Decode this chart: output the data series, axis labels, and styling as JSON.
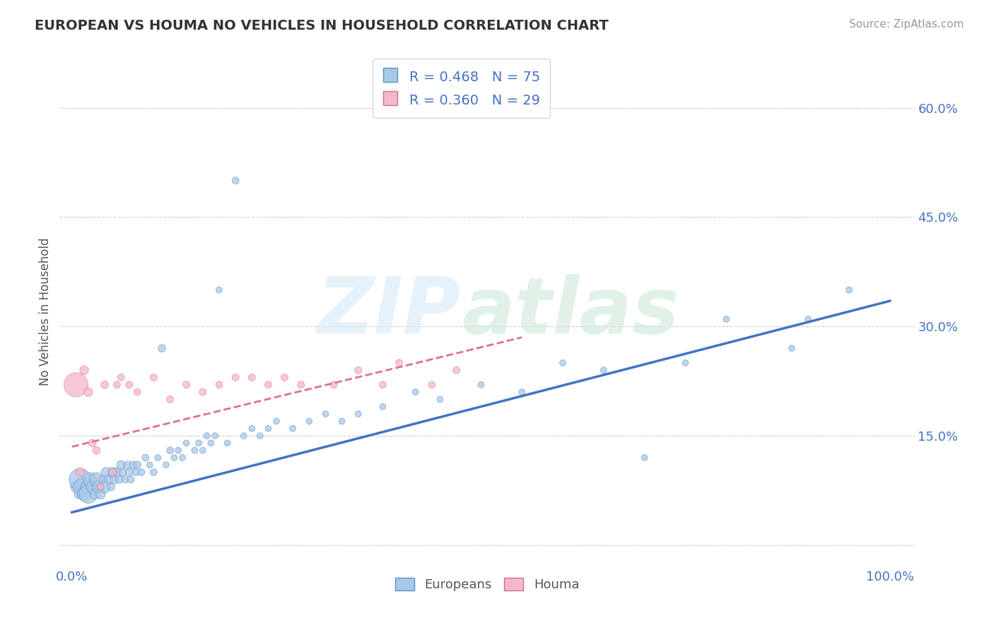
{
  "title": "EUROPEAN VS HOUMA NO VEHICLES IN HOUSEHOLD CORRELATION CHART",
  "source": "Source: ZipAtlas.com",
  "ylabel": "No Vehicles in Household",
  "yticks": [
    0.0,
    0.15,
    0.3,
    0.45,
    0.6
  ],
  "ytick_labels": [
    "",
    "15.0%",
    "30.0%",
    "45.0%",
    "60.0%"
  ],
  "xtick_vals": [
    0.0,
    1.0
  ],
  "xtick_labels": [
    "0.0%",
    "100.0%"
  ],
  "xlim": [
    -0.015,
    1.03
  ],
  "ylim": [
    -0.03,
    0.67
  ],
  "europeans_R": 0.468,
  "europeans_N": 75,
  "houma_R": 0.36,
  "houma_N": 29,
  "blue_color": "#a8c8e8",
  "pink_color": "#f4b8c8",
  "blue_line_color": "#4472c4",
  "pink_line_color": "#e07090",
  "legend_label_europeans": "Europeans",
  "legend_label_houma": "Houma",
  "europeans_x": [
    0.005,
    0.008,
    0.01,
    0.012,
    0.015,
    0.018,
    0.02,
    0.022,
    0.025,
    0.028,
    0.03,
    0.032,
    0.035,
    0.038,
    0.04,
    0.042,
    0.045,
    0.048,
    0.05,
    0.052,
    0.055,
    0.058,
    0.06,
    0.062,
    0.065,
    0.068,
    0.07,
    0.072,
    0.075,
    0.078,
    0.08,
    0.085,
    0.09,
    0.095,
    0.1,
    0.105,
    0.11,
    0.115,
    0.12,
    0.125,
    0.13,
    0.135,
    0.14,
    0.15,
    0.155,
    0.16,
    0.165,
    0.17,
    0.175,
    0.18,
    0.19,
    0.2,
    0.21,
    0.22,
    0.23,
    0.24,
    0.25,
    0.27,
    0.29,
    0.31,
    0.33,
    0.35,
    0.38,
    0.42,
    0.45,
    0.5,
    0.55,
    0.6,
    0.65,
    0.7,
    0.75,
    0.8,
    0.88,
    0.9,
    0.95
  ],
  "europeans_y": [
    0.08,
    0.07,
    0.09,
    0.08,
    0.07,
    0.08,
    0.07,
    0.09,
    0.08,
    0.07,
    0.09,
    0.08,
    0.07,
    0.09,
    0.08,
    0.1,
    0.09,
    0.08,
    0.1,
    0.09,
    0.1,
    0.09,
    0.11,
    0.1,
    0.09,
    0.11,
    0.1,
    0.09,
    0.11,
    0.1,
    0.11,
    0.1,
    0.12,
    0.11,
    0.1,
    0.12,
    0.27,
    0.11,
    0.13,
    0.12,
    0.13,
    0.12,
    0.14,
    0.13,
    0.14,
    0.13,
    0.15,
    0.14,
    0.15,
    0.35,
    0.14,
    0.5,
    0.15,
    0.16,
    0.15,
    0.16,
    0.17,
    0.16,
    0.17,
    0.18,
    0.17,
    0.18,
    0.19,
    0.21,
    0.2,
    0.22,
    0.21,
    0.25,
    0.24,
    0.12,
    0.25,
    0.31,
    0.27,
    0.31,
    0.35
  ],
  "europeans_size": [
    120,
    80,
    500,
    300,
    200,
    150,
    350,
    200,
    150,
    100,
    200,
    150,
    100,
    80,
    150,
    100,
    80,
    60,
    100,
    80,
    80,
    60,
    80,
    60,
    50,
    60,
    60,
    50,
    60,
    50,
    60,
    50,
    50,
    40,
    50,
    40,
    60,
    40,
    50,
    40,
    40,
    40,
    40,
    40,
    40,
    40,
    40,
    40,
    40,
    40,
    40,
    50,
    40,
    40,
    40,
    40,
    40,
    40,
    40,
    40,
    40,
    40,
    40,
    40,
    40,
    40,
    40,
    40,
    40,
    40,
    40,
    40,
    40,
    40,
    40
  ],
  "houma_x": [
    0.005,
    0.01,
    0.015,
    0.02,
    0.025,
    0.03,
    0.035,
    0.04,
    0.05,
    0.055,
    0.06,
    0.07,
    0.08,
    0.1,
    0.12,
    0.14,
    0.16,
    0.18,
    0.2,
    0.22,
    0.24,
    0.26,
    0.28,
    0.32,
    0.35,
    0.38,
    0.4,
    0.44,
    0.47
  ],
  "houma_y": [
    0.22,
    0.1,
    0.24,
    0.21,
    0.14,
    0.13,
    0.08,
    0.22,
    0.1,
    0.22,
    0.23,
    0.22,
    0.21,
    0.23,
    0.2,
    0.22,
    0.21,
    0.22,
    0.23,
    0.23,
    0.22,
    0.23,
    0.22,
    0.22,
    0.24,
    0.22,
    0.25,
    0.22,
    0.24
  ],
  "houma_size": [
    600,
    80,
    80,
    80,
    60,
    60,
    50,
    60,
    60,
    50,
    50,
    50,
    50,
    50,
    50,
    50,
    50,
    50,
    50,
    50,
    50,
    50,
    50,
    50,
    50,
    50,
    50,
    50,
    50
  ],
  "eu_trendline_x": [
    0.0,
    1.0
  ],
  "eu_trendline_y": [
    0.045,
    0.335
  ],
  "ho_trendline_x": [
    0.0,
    0.55
  ],
  "ho_trendline_y": [
    0.135,
    0.285
  ]
}
